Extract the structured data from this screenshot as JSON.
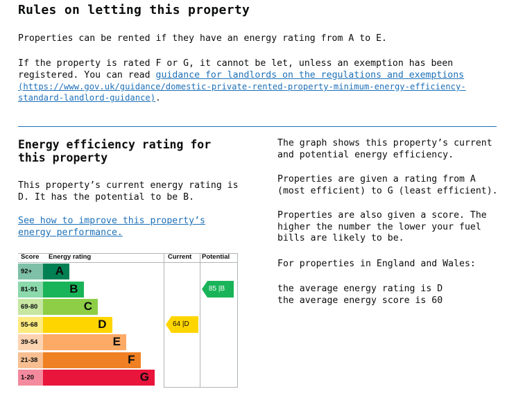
{
  "rules": {
    "heading": "Rules on letting this property",
    "para1": "Properties can be rented if they have an energy rating from A to E.",
    "para2_line1": "If the property is rated F or G, it cannot be let, unless an exemption has been",
    "para2_line2_prefix": "registered. You can read ",
    "para2_link": "guidance for landlords on the regulations and exemptions",
    "para2_url_line1": "(https://www.gov.uk/guidance/domestic-private-rented-property-minimum-energy-efficiency-",
    "para2_url_line2": "standard-landlord-guidance)",
    "para2_suffix": "."
  },
  "rating": {
    "heading": "Energy efficiency rating for this property",
    "current_text": "This property’s current energy rating is D. It has the potential to be B.",
    "improve_link": "See how to improve this property’s energy performance."
  },
  "chart_data": {
    "type": "table",
    "headers": {
      "score": "Score",
      "rating": "Energy rating",
      "current": "Current",
      "potential": "Potential"
    },
    "bands": [
      {
        "score": "92+",
        "letter": "A",
        "color": "#008054",
        "score_bg": "#7fc0a9"
      },
      {
        "score": "81-91",
        "letter": "B",
        "color": "#19b459",
        "score_bg": "#8cd9ac"
      },
      {
        "score": "69-80",
        "letter": "C",
        "color": "#8dce46",
        "score_bg": "#c6e6a2"
      },
      {
        "score": "55-68",
        "letter": "D",
        "color": "#ffd500",
        "score_bg": "#ffea7f"
      },
      {
        "score": "39-54",
        "letter": "E",
        "color": "#fcaa65",
        "score_bg": "#fdd4b2"
      },
      {
        "score": "21-38",
        "letter": "F",
        "color": "#ef8023",
        "score_bg": "#f7bf91"
      },
      {
        "score": "1-20",
        "letter": "G",
        "color": "#e9153b",
        "score_bg": "#f48a9d"
      }
    ],
    "current": {
      "score": 64,
      "letter": "D",
      "label": "64 |D",
      "color": "#ffd500"
    },
    "potential": {
      "score": 85,
      "letter": "B",
      "label": "85 |B",
      "color": "#19b459"
    }
  },
  "info": {
    "p1": "The graph shows this property’s current and potential energy efficiency.",
    "p2": "Properties are given a rating from A (most efficient) to G (least efficient).",
    "p3": "Properties are also given a score. The higher the number the lower your fuel bills are likely to be.",
    "p4": "For properties in England and Wales:",
    "p5_line1": "the average energy rating is D",
    "p5_line2": "the average energy score is 60"
  }
}
